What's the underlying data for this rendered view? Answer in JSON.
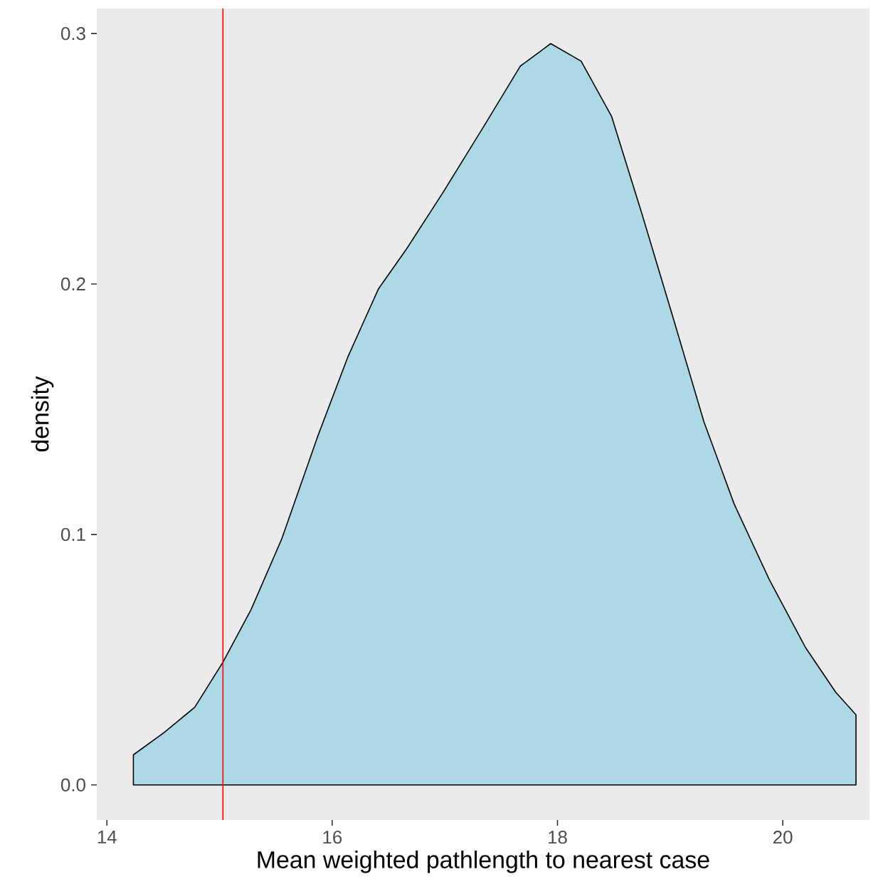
{
  "chart_data": {
    "type": "area",
    "xlabel": "Mean weighted pathlength to nearest case",
    "ylabel": "density",
    "x": [
      14.235,
      14.51,
      14.78,
      15.03,
      15.28,
      15.55,
      15.87,
      16.14,
      16.41,
      16.66,
      16.99,
      17.36,
      17.67,
      17.94,
      18.21,
      18.48,
      18.75,
      19.03,
      19.3,
      19.57,
      19.88,
      20.2,
      20.47,
      20.65
    ],
    "series": [
      {
        "color": "#add8e6",
        "values": [
          0.012,
          0.021,
          0.031,
          0.049,
          0.07,
          0.098,
          0.139,
          0.171,
          0.198,
          0.214,
          0.237,
          0.264,
          0.287,
          0.296,
          0.289,
          0.267,
          0.228,
          0.186,
          0.145,
          0.112,
          0.082,
          0.055,
          0.037,
          0.028
        ]
      }
    ],
    "xlim": [
      13.91,
      20.77
    ],
    "ylim": [
      -0.014,
      0.31
    ],
    "xticks": [
      14,
      16,
      18,
      20
    ],
    "yticks": [
      {
        "value": 0,
        "label": "0.0"
      },
      {
        "value": 0.1,
        "label": "0.1"
      },
      {
        "value": 0.2,
        "label": "0.2"
      },
      {
        "value": 0.3,
        "label": "0.3"
      }
    ],
    "ref_lines": [
      {
        "axis": "x",
        "value": 15.03,
        "color": "#ff0000"
      }
    ]
  }
}
